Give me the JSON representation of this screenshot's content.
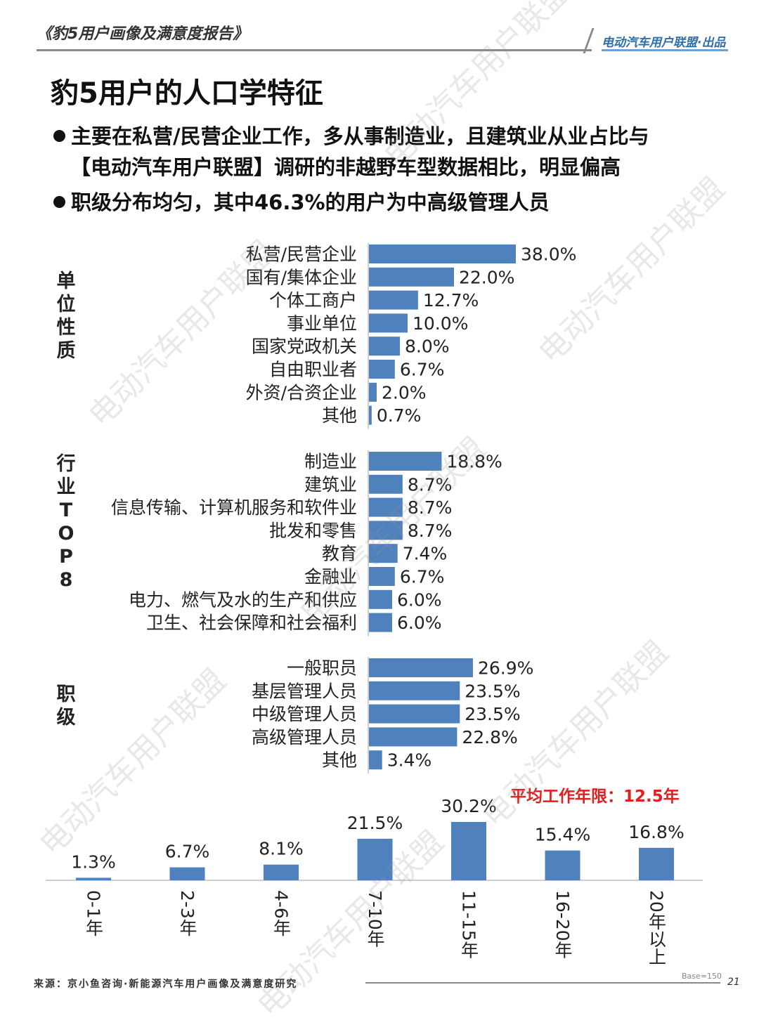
{
  "header": {
    "report_title": "《豹5用户画像及满意度报告》",
    "publisher": "电动汽车用户联盟·出品"
  },
  "page_title": "豹5用户的人口学特征",
  "bullets": [
    {
      "line1": "主要在私营/民营企业工作，多从事制造业，且建筑业从业占比与",
      "line2": "【电动汽车用户联盟】调研的非越野车型数据相比，明显偏高"
    },
    {
      "line1": "职级分布均匀，其中46.3%的用户为中高级管理人员"
    }
  ],
  "section_labels": {
    "unit": "单位性质",
    "industry": [
      "行",
      "业",
      "T",
      "O",
      "P",
      "8"
    ],
    "level": "职级"
  },
  "avg_note": "平均工作年限：12.5年",
  "footer": {
    "source": "来源：京小鱼咨询·新能源汽车用户画像及满意度研究",
    "base": "Base=150",
    "page_number": "21"
  },
  "watermark": "电动汽车用户联盟",
  "colors": {
    "bar": "#4f81bd",
    "axis": "#bfbfbf",
    "highlight": "#e02020"
  },
  "chart_data": [
    {
      "type": "bar",
      "orientation": "horizontal",
      "title": "单位性质",
      "categories": [
        "私营/民营企业",
        "国有/集体企业",
        "个体工商户",
        "事业单位",
        "国家党政机关",
        "自由职业者",
        "外资/合资企业",
        "其他"
      ],
      "values": [
        38.0,
        22.0,
        12.7,
        10.0,
        8.0,
        6.7,
        2.0,
        0.7
      ],
      "labels": [
        "38.0%",
        "22.0%",
        "12.7%",
        "10.0%",
        "8.0%",
        "6.7%",
        "2.0%",
        "0.7%"
      ],
      "unit": "%"
    },
    {
      "type": "bar",
      "orientation": "horizontal",
      "title": "行业TOP8",
      "categories": [
        "制造业",
        "建筑业",
        "信息传输、计算机服务和软件业",
        "批发和零售",
        "教育",
        "金融业",
        "电力、燃气及水的生产和供应",
        "卫生、社会保障和社会福利"
      ],
      "values": [
        18.8,
        8.7,
        8.7,
        8.7,
        7.4,
        6.7,
        6.0,
        6.0
      ],
      "labels": [
        "18.8%",
        "8.7%",
        "8.7%",
        "8.7%",
        "7.4%",
        "6.7%",
        "6.0%",
        "6.0%"
      ],
      "unit": "%"
    },
    {
      "type": "bar",
      "orientation": "horizontal",
      "title": "职级",
      "categories": [
        "一般职员",
        "基层管理人员",
        "中级管理人员",
        "高级管理人员",
        "其他"
      ],
      "values": [
        26.9,
        23.5,
        23.5,
        22.8,
        3.4
      ],
      "labels": [
        "26.9%",
        "23.5%",
        "23.5%",
        "22.8%",
        "3.4%"
      ],
      "unit": "%"
    },
    {
      "type": "bar",
      "orientation": "vertical",
      "title": "",
      "categories": [
        "0-1年",
        "2-3年",
        "4-6年",
        "7-10年",
        "11-15年",
        "16-20年",
        "20年以上"
      ],
      "values": [
        1.3,
        6.7,
        8.1,
        21.5,
        30.2,
        15.4,
        16.8
      ],
      "labels": [
        "1.3%",
        "6.7%",
        "8.1%",
        "21.5%",
        "30.2%",
        "15.4%",
        "16.8%"
      ],
      "unit": "%"
    }
  ]
}
